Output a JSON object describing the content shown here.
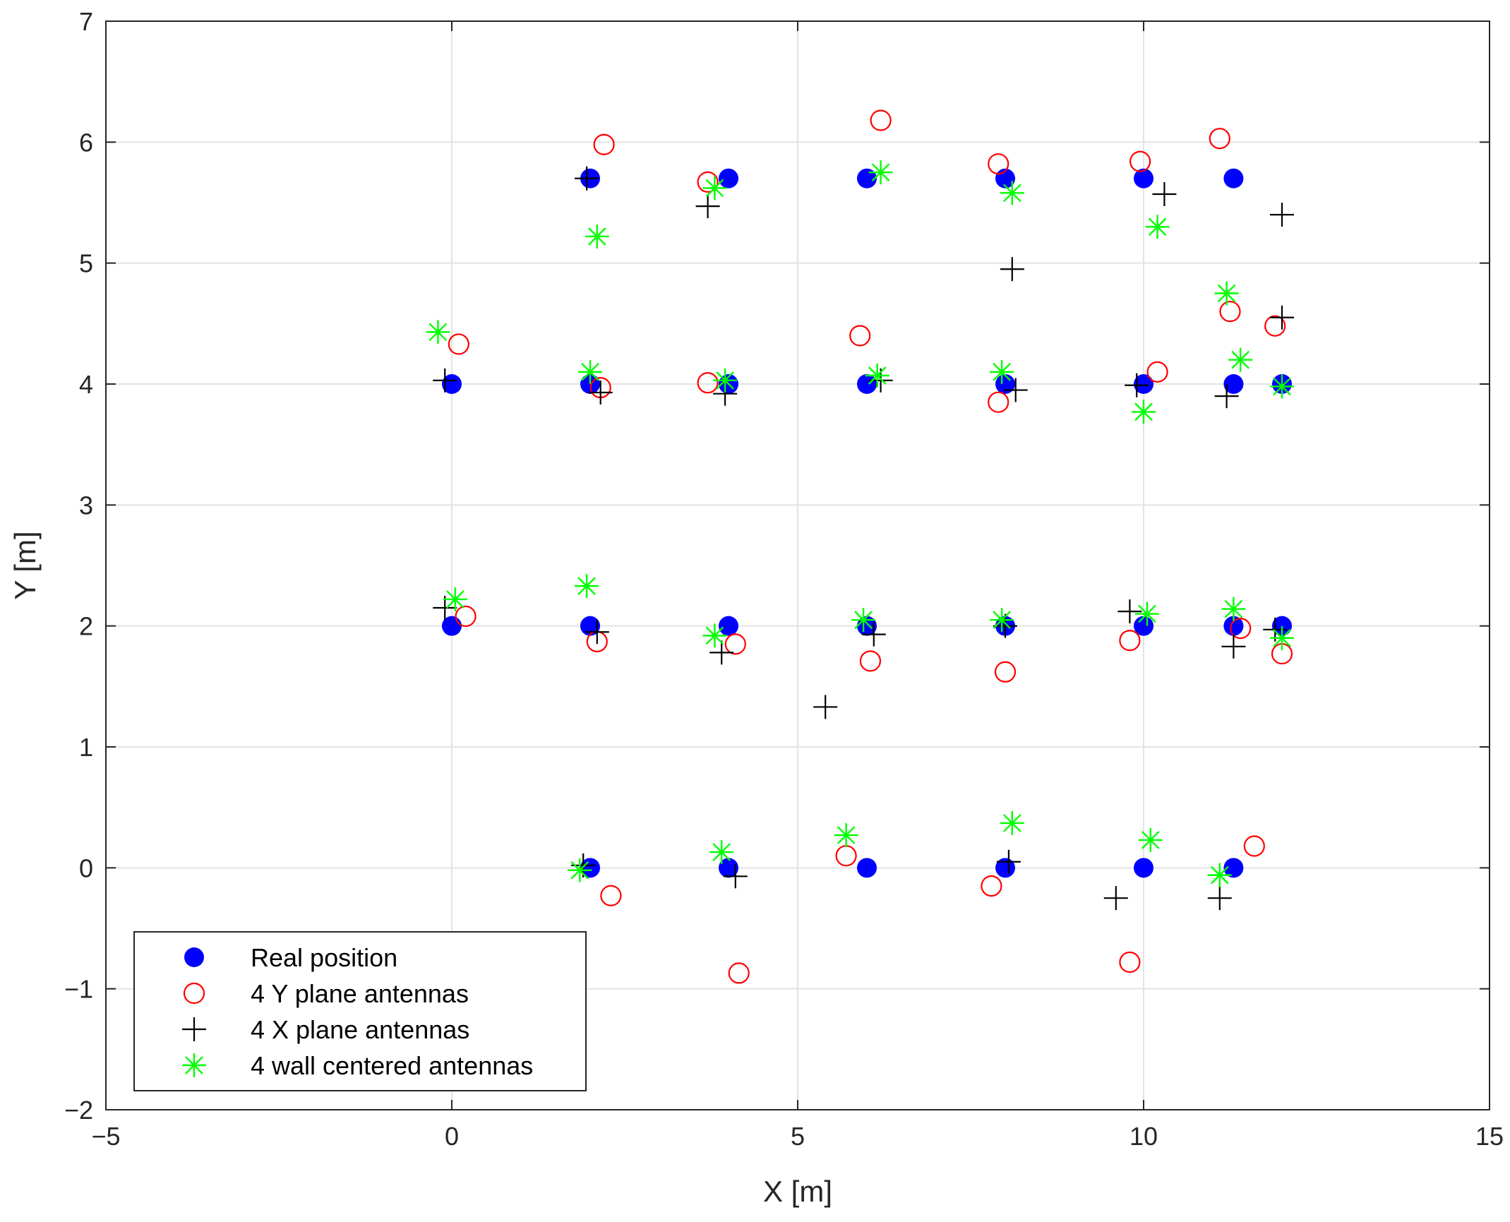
{
  "chart_data": {
    "type": "scatter",
    "title": "",
    "xlabel": "X [m]",
    "ylabel": "Y [m]",
    "xlim": [
      -5,
      15
    ],
    "ylim": [
      -2,
      7
    ],
    "xticks": [
      -5,
      0,
      5,
      10,
      15
    ],
    "yticks": [
      -2,
      -1,
      0,
      1,
      2,
      3,
      4,
      5,
      6,
      7
    ],
    "xtick_labels": [
      "−5",
      "0",
      "5",
      "10",
      "15"
    ],
    "ytick_labels": [
      "−2",
      "−1",
      "0",
      "1",
      "2",
      "3",
      "4",
      "5",
      "6",
      "7"
    ],
    "grid": true,
    "legend_position": "bottom-left",
    "series": [
      {
        "name": "Real position",
        "marker": "filled-circle",
        "color": "#0000ff",
        "points": [
          [
            2,
            5.7
          ],
          [
            4,
            5.7
          ],
          [
            6,
            5.7
          ],
          [
            8,
            5.7
          ],
          [
            10,
            5.7
          ],
          [
            11.3,
            5.7
          ],
          [
            0,
            4
          ],
          [
            2,
            4
          ],
          [
            4,
            4
          ],
          [
            6,
            4
          ],
          [
            8,
            4
          ],
          [
            10,
            4
          ],
          [
            11.3,
            4
          ],
          [
            12,
            4
          ],
          [
            0,
            2
          ],
          [
            2,
            2
          ],
          [
            4,
            2
          ],
          [
            6,
            2
          ],
          [
            8,
            2
          ],
          [
            10,
            2
          ],
          [
            11.3,
            2
          ],
          [
            12,
            2
          ],
          [
            2,
            0
          ],
          [
            4,
            0
          ],
          [
            6,
            0
          ],
          [
            8,
            0
          ],
          [
            10,
            0
          ],
          [
            11.3,
            0
          ]
        ]
      },
      {
        "name": "4 Y plane antennas",
        "marker": "open-circle",
        "color": "#ff0000",
        "points": [
          [
            2.2,
            5.98
          ],
          [
            3.7,
            5.67
          ],
          [
            6.2,
            6.18
          ],
          [
            7.9,
            5.82
          ],
          [
            9.95,
            5.84
          ],
          [
            11.1,
            6.03
          ],
          [
            0.1,
            4.33
          ],
          [
            5.9,
            4.4
          ],
          [
            11.25,
            4.6
          ],
          [
            11.9,
            4.48
          ],
          [
            2.15,
            3.97
          ],
          [
            3.7,
            4.01
          ],
          [
            7.9,
            3.85
          ],
          [
            10.2,
            4.1
          ],
          [
            0.2,
            2.08
          ],
          [
            2.1,
            1.87
          ],
          [
            4.1,
            1.85
          ],
          [
            6.05,
            1.71
          ],
          [
            8.0,
            1.62
          ],
          [
            9.8,
            1.88
          ],
          [
            11.4,
            1.98
          ],
          [
            12.0,
            1.77
          ],
          [
            5.7,
            0.1
          ],
          [
            7.8,
            -0.15
          ],
          [
            11.6,
            0.18
          ],
          [
            2.3,
            -0.23
          ],
          [
            4.15,
            -0.87
          ],
          [
            9.8,
            -0.78
          ]
        ]
      },
      {
        "name": "4 X plane antennas",
        "marker": "plus",
        "color": "#000000",
        "points": [
          [
            1.95,
            5.7
          ],
          [
            3.7,
            5.47
          ],
          [
            10.3,
            5.57
          ],
          [
            12.0,
            5.4
          ],
          [
            8.1,
            4.95
          ],
          [
            12.0,
            4.55
          ],
          [
            -0.1,
            4.03
          ],
          [
            2.15,
            3.93
          ],
          [
            3.95,
            3.92
          ],
          [
            6.2,
            4.03
          ],
          [
            8.15,
            3.95
          ],
          [
            9.9,
            3.99
          ],
          [
            11.2,
            3.9
          ],
          [
            -0.1,
            2.15
          ],
          [
            2.1,
            1.95
          ],
          [
            3.9,
            1.78
          ],
          [
            6.1,
            1.93
          ],
          [
            8.0,
            2.0
          ],
          [
            9.8,
            2.12
          ],
          [
            11.3,
            1.83
          ],
          [
            11.9,
            1.97
          ],
          [
            5.4,
            1.33
          ],
          [
            1.9,
            0.02
          ],
          [
            4.1,
            -0.07
          ],
          [
            8.05,
            0.05
          ],
          [
            9.6,
            -0.25
          ],
          [
            11.1,
            -0.25
          ]
        ]
      },
      {
        "name": "4 wall centered antennas",
        "marker": "asterisk",
        "color": "#00ff00",
        "points": [
          [
            6.2,
            5.75
          ],
          [
            3.8,
            5.62
          ],
          [
            8.1,
            5.58
          ],
          [
            2.1,
            5.22
          ],
          [
            10.2,
            5.3
          ],
          [
            -0.2,
            4.43
          ],
          [
            11.2,
            4.75
          ],
          [
            11.4,
            4.2
          ],
          [
            2.0,
            4.1
          ],
          [
            3.95,
            4.03
          ],
          [
            6.15,
            4.07
          ],
          [
            7.95,
            4.1
          ],
          [
            10.0,
            3.77
          ],
          [
            12.0,
            3.98
          ],
          [
            0.05,
            2.22
          ],
          [
            1.95,
            2.33
          ],
          [
            3.8,
            1.92
          ],
          [
            5.95,
            2.05
          ],
          [
            7.95,
            2.05
          ],
          [
            10.05,
            2.1
          ],
          [
            11.3,
            2.14
          ],
          [
            12.0,
            1.9
          ],
          [
            5.7,
            0.27
          ],
          [
            8.1,
            0.37
          ],
          [
            10.1,
            0.23
          ],
          [
            3.9,
            0.13
          ],
          [
            1.85,
            -0.02
          ],
          [
            11.1,
            -0.06
          ]
        ]
      }
    ]
  }
}
